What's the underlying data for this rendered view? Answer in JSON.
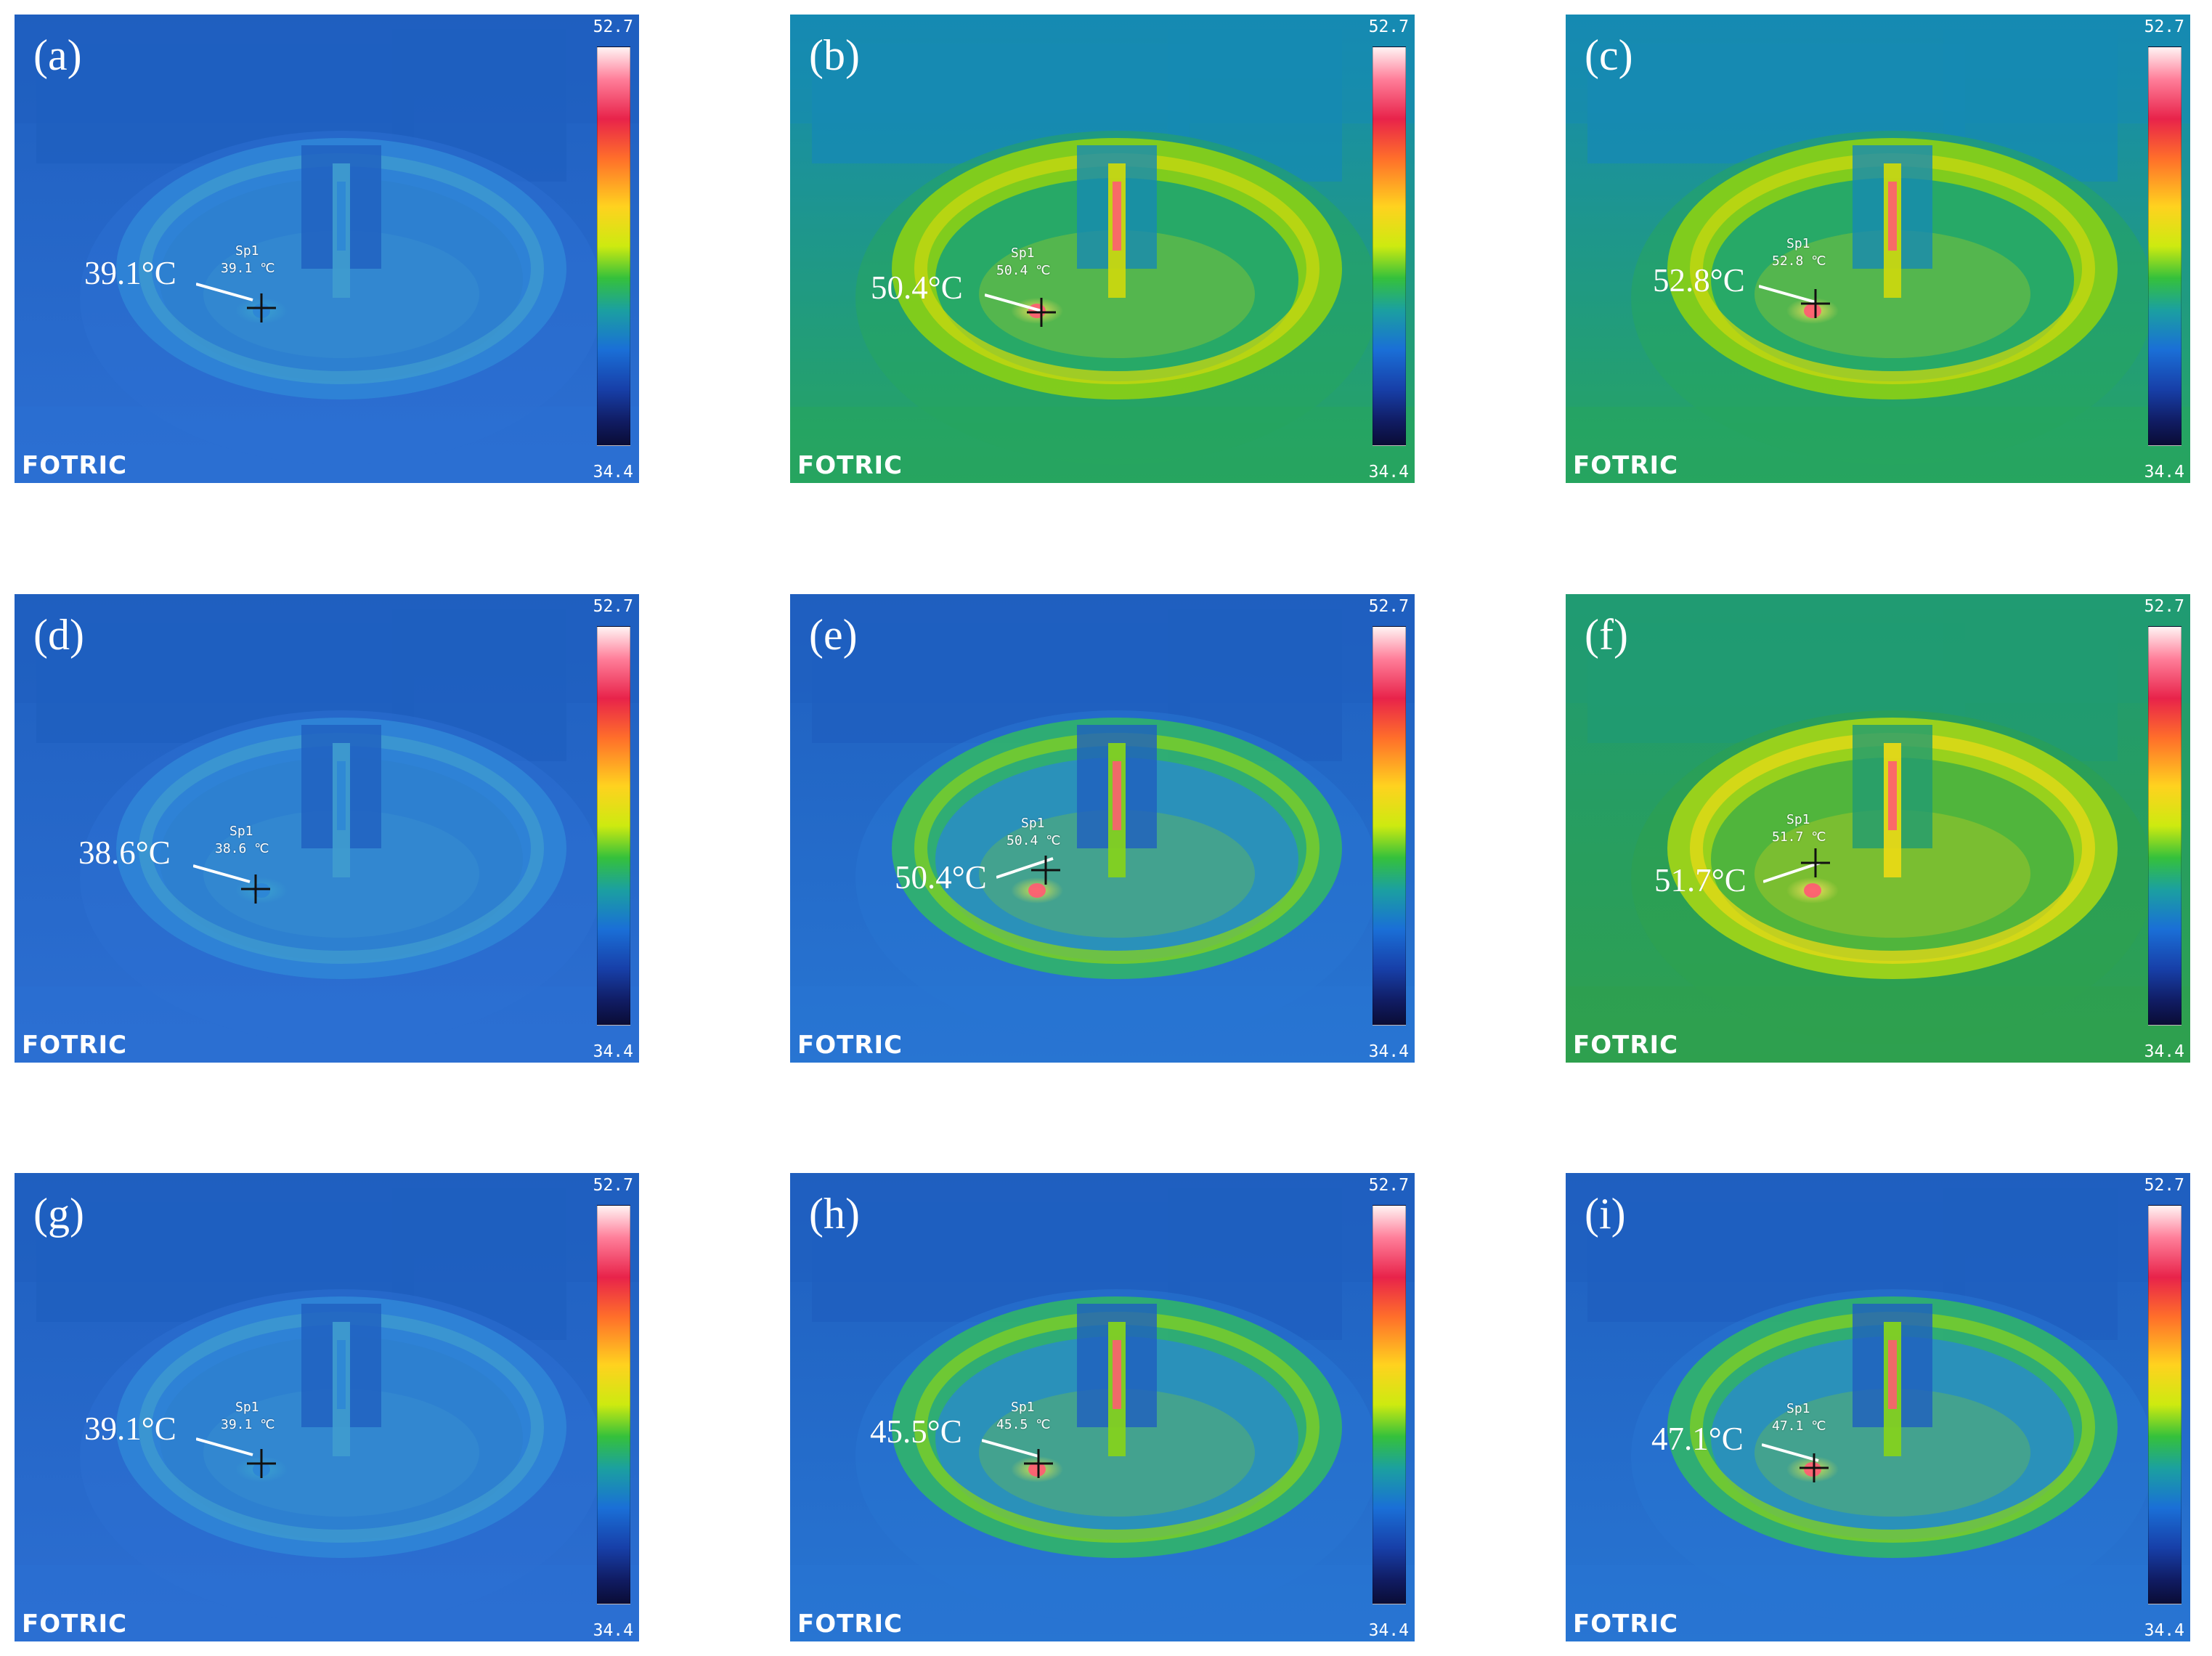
{
  "colorbar": {
    "max": "52.7",
    "min": "34.4"
  },
  "brand": "FOTRIC",
  "spot_name": "Sp1",
  "unit_small": "℃",
  "unit_callout": "°C",
  "colors": {
    "cool_bg": "#2d71d4",
    "hot_spot": "#ff4d6d"
  },
  "panels": [
    {
      "label": "(a)",
      "reading": "39.1",
      "callout": "39.1°C",
      "state": "cool"
    },
    {
      "label": "(b)",
      "reading": "50.4",
      "callout": "50.4°C",
      "state": "warm"
    },
    {
      "label": "(c)",
      "reading": "52.8",
      "callout": "52.8°C",
      "state": "warm"
    },
    {
      "label": "(d)",
      "reading": "38.6",
      "callout": "38.6°C",
      "state": "cool"
    },
    {
      "label": "(e)",
      "reading": "50.4",
      "callout": "50.4°C",
      "state": "warm-low"
    },
    {
      "label": "(f)",
      "reading": "51.7",
      "callout": "51.7°C",
      "state": "warm-high"
    },
    {
      "label": "(g)",
      "reading": "39.1",
      "callout": "39.1°C",
      "state": "cool"
    },
    {
      "label": "(h)",
      "reading": "45.5",
      "callout": "45.5°C",
      "state": "warm-low"
    },
    {
      "label": "(i)",
      "reading": "47.1",
      "callout": "47.1°C",
      "state": "warm-low"
    }
  ]
}
